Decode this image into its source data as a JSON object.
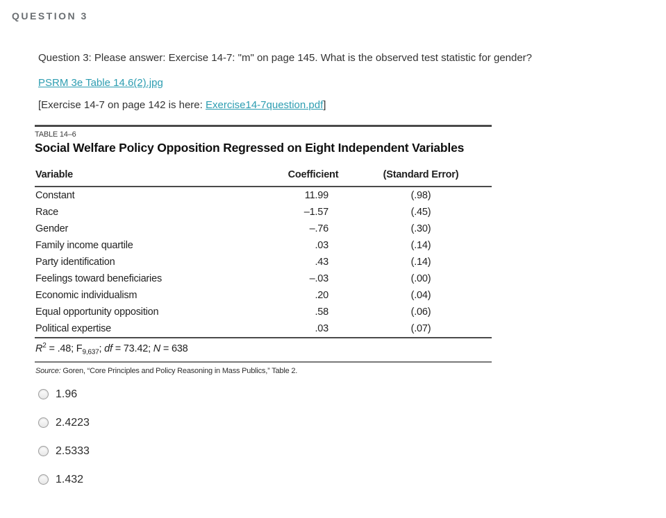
{
  "header": {
    "label": "QUESTION 3"
  },
  "question": {
    "text": "Question 3:  Please answer: Exercise 14-7: \"m\" on page 145. What is the observed test statistic for gender?",
    "attachment_link": "PSRM 3e Table 14.6(2).jpg",
    "note_prefix": "[Exercise 14-7 on page 142 is here: ",
    "note_link": "Exercise14-7question.pdf",
    "note_suffix": "]"
  },
  "table": {
    "label": "TABLE 14–6",
    "title": "Social Welfare Policy Opposition Regressed on Eight Independent Variables",
    "col_variable": "Variable",
    "col_coefficient": "Coefficient",
    "col_se": "(Standard Error)",
    "rows": [
      {
        "variable": "Constant",
        "coefficient": "11.99",
        "se": "(.98)"
      },
      {
        "variable": "Race",
        "coefficient": "–1.57",
        "se": "(.45)"
      },
      {
        "variable": "Gender",
        "coefficient": "–.76",
        "se": "(.30)"
      },
      {
        "variable": "Family income quartile",
        "coefficient": ".03",
        "se": "(.14)"
      },
      {
        "variable": "Party identification",
        "coefficient": ".43",
        "se": "(.14)"
      },
      {
        "variable": "Feelings toward beneficiaries",
        "coefficient": "–.03",
        "se": "(.00)"
      },
      {
        "variable": "Economic individualism",
        "coefficient": ".20",
        "se": "(.04)"
      },
      {
        "variable": "Equal opportunity opposition",
        "coefficient": ".58",
        "se": "(.06)"
      },
      {
        "variable": "Political expertise",
        "coefficient": ".03",
        "se": "(.07)"
      }
    ],
    "stats": {
      "r": "R",
      "r_sup": "2",
      "part1": " = .48; F",
      "f_sub": "9,637",
      "part2": "; ",
      "df": "df",
      "part3": " = 73.42; ",
      "n": "N",
      "part4": " = 638"
    },
    "source_label": "Source:",
    "source_text": " Goren, “Core Principles and Policy Reasoning in Mass Publics,” Table 2."
  },
  "options": [
    {
      "label": "1.96"
    },
    {
      "label": "2.4223"
    },
    {
      "label": "2.5333"
    },
    {
      "label": "1.432"
    }
  ],
  "colors": {
    "link": "#2d9db1",
    "heading": "#6a6e72",
    "text": "#333333",
    "table_line": "#4a4a4a"
  }
}
